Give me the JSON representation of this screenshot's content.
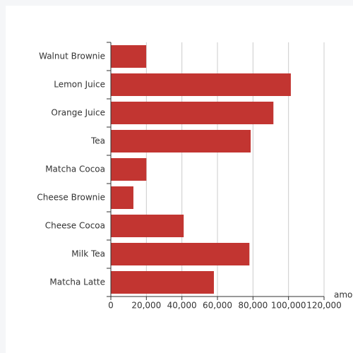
{
  "chart_data": {
    "type": "bar",
    "orientation": "horizontal",
    "x_label": "amount",
    "categories": [
      "Matcha Latte",
      "Milk Tea",
      "Cheese Cocoa",
      "Cheese Brownie",
      "Matcha Cocoa",
      "Tea",
      "Orange Juice",
      "Lemon Juice",
      "Walnut Brownie"
    ],
    "values": [
      58000,
      78000,
      41000,
      12700,
      20000,
      78700,
      91500,
      101300,
      19900
    ],
    "color": "#c23531",
    "xlim": [
      0,
      120000
    ],
    "xticks": [
      0,
      {
        "value": 20000,
        "label": "20,000"
      },
      {
        "value": 40000,
        "label": "40,000"
      },
      {
        "value": 60000,
        "label": "60,000"
      },
      {
        "value": 80000,
        "label": "80,000"
      },
      {
        "value": 100000,
        "label": "100,000"
      },
      {
        "value": 120000,
        "label": "120,000"
      }
    ],
    "grid": true
  }
}
